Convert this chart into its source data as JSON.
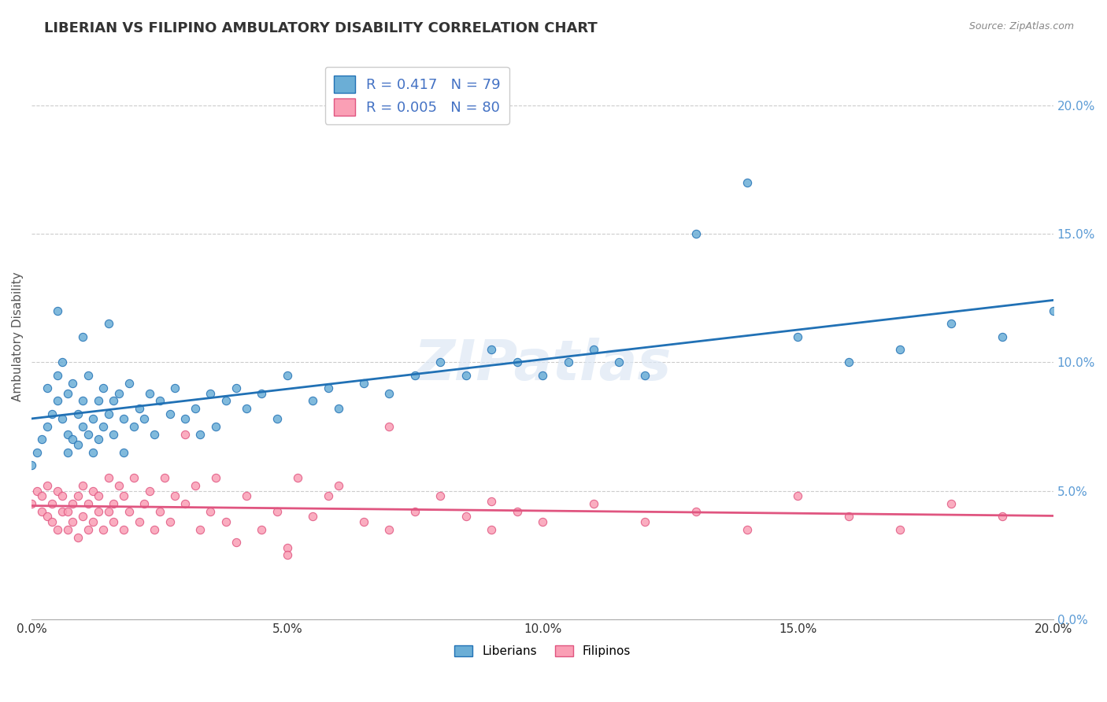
{
  "title": "LIBERIAN VS FILIPINO AMBULATORY DISABILITY CORRELATION CHART",
  "source": "Source: ZipAtlas.com",
  "ylabel": "Ambulatory Disability",
  "liberian_R": 0.417,
  "liberian_N": 79,
  "filipino_R": 0.005,
  "filipino_N": 80,
  "liberian_color": "#6baed6",
  "filipino_color": "#fa9fb5",
  "liberian_line_color": "#2171b5",
  "filipino_line_color": "#e05580",
  "background_color": "#ffffff",
  "xlim": [
    0.0,
    0.2
  ],
  "ylim": [
    0.0,
    0.22
  ],
  "xticks": [
    0.0,
    0.05,
    0.1,
    0.15,
    0.2
  ],
  "yticks": [
    0.0,
    0.05,
    0.1,
    0.15,
    0.2
  ],
  "liberian_x": [
    0.0,
    0.001,
    0.002,
    0.003,
    0.003,
    0.004,
    0.005,
    0.005,
    0.006,
    0.006,
    0.007,
    0.007,
    0.007,
    0.008,
    0.008,
    0.009,
    0.009,
    0.01,
    0.01,
    0.011,
    0.011,
    0.012,
    0.012,
    0.013,
    0.013,
    0.014,
    0.014,
    0.015,
    0.016,
    0.016,
    0.017,
    0.018,
    0.018,
    0.019,
    0.02,
    0.021,
    0.022,
    0.023,
    0.024,
    0.025,
    0.027,
    0.028,
    0.03,
    0.032,
    0.033,
    0.035,
    0.036,
    0.038,
    0.04,
    0.042,
    0.045,
    0.048,
    0.05,
    0.055,
    0.058,
    0.06,
    0.065,
    0.07,
    0.075,
    0.08,
    0.085,
    0.09,
    0.095,
    0.1,
    0.105,
    0.11,
    0.115,
    0.12,
    0.13,
    0.14,
    0.15,
    0.16,
    0.17,
    0.18,
    0.19,
    0.2,
    0.005,
    0.01,
    0.015
  ],
  "liberian_y": [
    0.06,
    0.065,
    0.07,
    0.09,
    0.075,
    0.08,
    0.095,
    0.085,
    0.1,
    0.078,
    0.072,
    0.065,
    0.088,
    0.092,
    0.07,
    0.08,
    0.068,
    0.075,
    0.085,
    0.072,
    0.095,
    0.065,
    0.078,
    0.085,
    0.07,
    0.075,
    0.09,
    0.08,
    0.085,
    0.072,
    0.088,
    0.078,
    0.065,
    0.092,
    0.075,
    0.082,
    0.078,
    0.088,
    0.072,
    0.085,
    0.08,
    0.09,
    0.078,
    0.082,
    0.072,
    0.088,
    0.075,
    0.085,
    0.09,
    0.082,
    0.088,
    0.078,
    0.095,
    0.085,
    0.09,
    0.082,
    0.092,
    0.088,
    0.095,
    0.1,
    0.095,
    0.105,
    0.1,
    0.095,
    0.1,
    0.105,
    0.1,
    0.095,
    0.15,
    0.17,
    0.11,
    0.1,
    0.105,
    0.115,
    0.11,
    0.12,
    0.12,
    0.11,
    0.115
  ],
  "filipino_x": [
    0.0,
    0.001,
    0.002,
    0.002,
    0.003,
    0.003,
    0.004,
    0.004,
    0.005,
    0.005,
    0.006,
    0.006,
    0.007,
    0.007,
    0.008,
    0.008,
    0.009,
    0.009,
    0.01,
    0.01,
    0.011,
    0.011,
    0.012,
    0.012,
    0.013,
    0.013,
    0.014,
    0.015,
    0.015,
    0.016,
    0.016,
    0.017,
    0.018,
    0.018,
    0.019,
    0.02,
    0.021,
    0.022,
    0.023,
    0.024,
    0.025,
    0.026,
    0.027,
    0.028,
    0.03,
    0.032,
    0.033,
    0.035,
    0.036,
    0.038,
    0.04,
    0.042,
    0.045,
    0.048,
    0.05,
    0.052,
    0.055,
    0.058,
    0.06,
    0.065,
    0.07,
    0.075,
    0.08,
    0.085,
    0.09,
    0.095,
    0.1,
    0.11,
    0.12,
    0.13,
    0.14,
    0.15,
    0.16,
    0.17,
    0.18,
    0.19,
    0.03,
    0.05,
    0.07,
    0.09
  ],
  "filipino_y": [
    0.045,
    0.05,
    0.042,
    0.048,
    0.04,
    0.052,
    0.038,
    0.045,
    0.035,
    0.05,
    0.042,
    0.048,
    0.035,
    0.042,
    0.038,
    0.045,
    0.032,
    0.048,
    0.04,
    0.052,
    0.035,
    0.045,
    0.038,
    0.05,
    0.042,
    0.048,
    0.035,
    0.042,
    0.055,
    0.038,
    0.045,
    0.052,
    0.035,
    0.048,
    0.042,
    0.055,
    0.038,
    0.045,
    0.05,
    0.035,
    0.042,
    0.055,
    0.038,
    0.048,
    0.045,
    0.052,
    0.035,
    0.042,
    0.055,
    0.038,
    0.03,
    0.048,
    0.035,
    0.042,
    0.028,
    0.055,
    0.04,
    0.048,
    0.052,
    0.038,
    0.035,
    0.042,
    0.048,
    0.04,
    0.035,
    0.042,
    0.038,
    0.045,
    0.038,
    0.042,
    0.035,
    0.048,
    0.04,
    0.035,
    0.045,
    0.04,
    0.072,
    0.025,
    0.075,
    0.046
  ]
}
